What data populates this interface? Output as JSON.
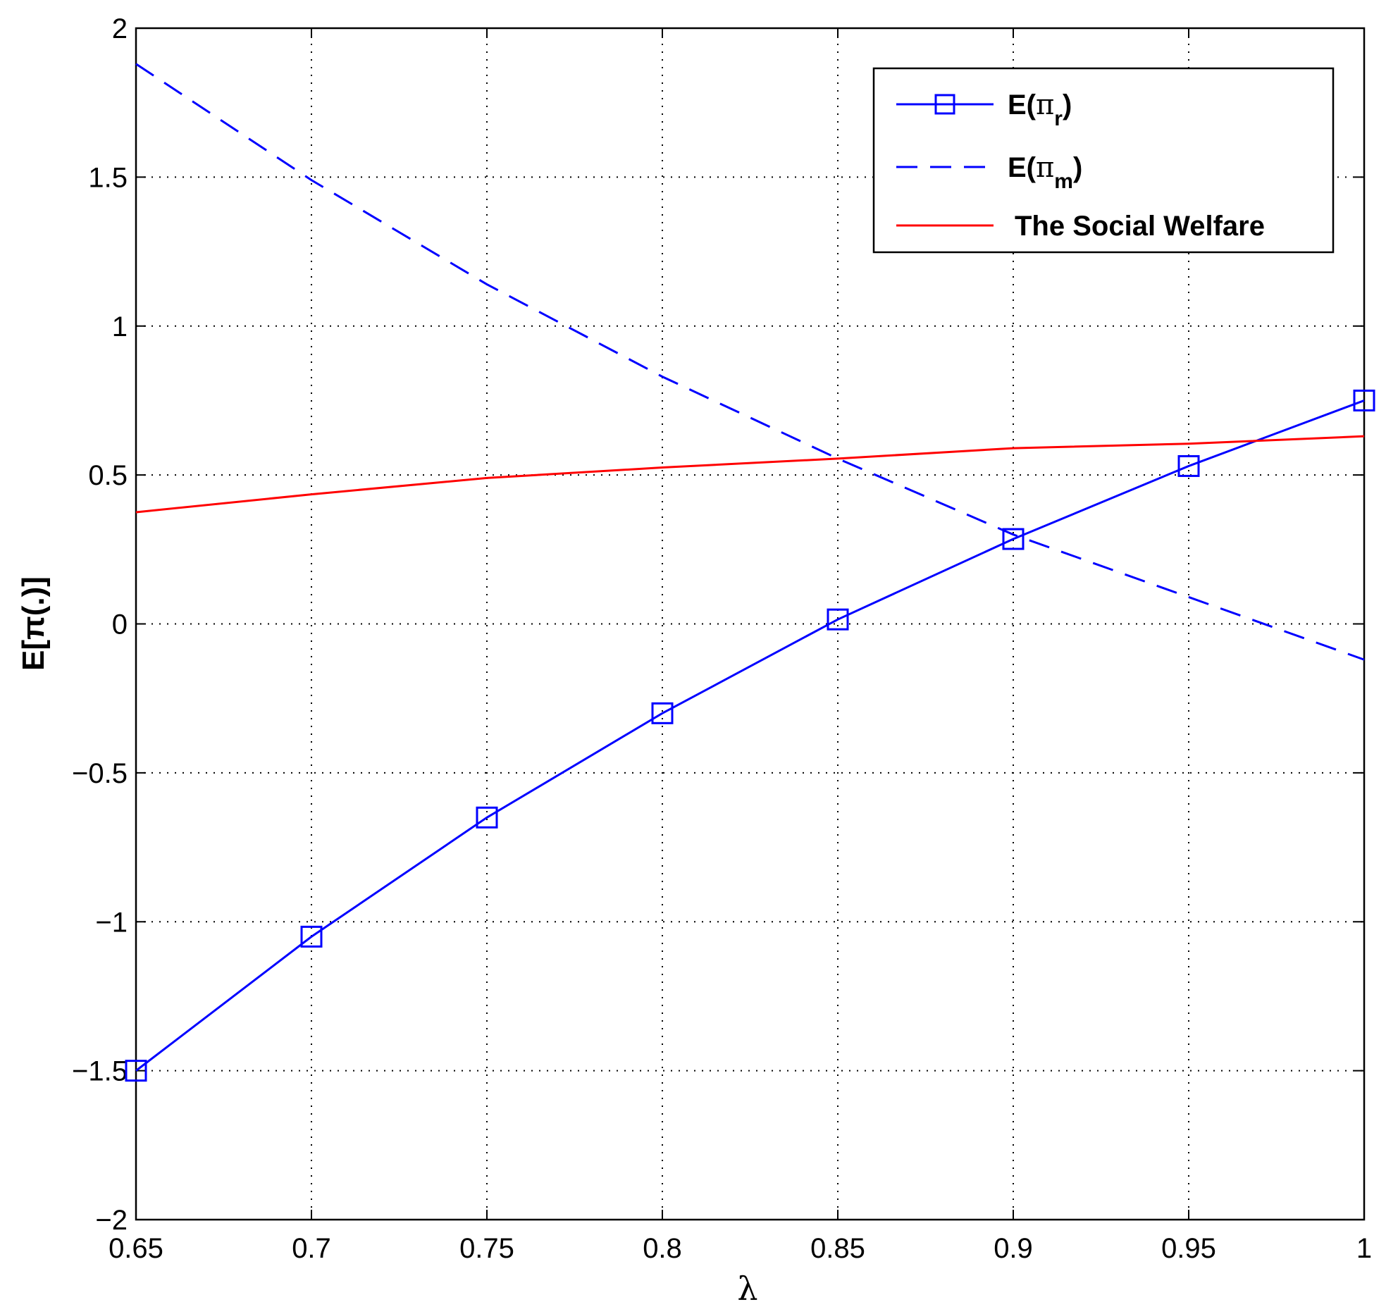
{
  "chart_data": {
    "type": "line",
    "xlabel": "λ",
    "ylabel": "E[π(.)]",
    "xlim": [
      0.65,
      1
    ],
    "ylim": [
      -2,
      2
    ],
    "x_ticks": [
      "0.65",
      "0.7",
      "0.75",
      "0.8",
      "0.85",
      "0.9",
      "0.95",
      "1"
    ],
    "y_ticks": [
      "−2",
      "−1.5",
      "−1",
      "−0.5",
      "0",
      "0.5",
      "1",
      "1.5",
      "2"
    ],
    "grid": true,
    "legend_position": "top-right",
    "series": [
      {
        "name": "E(π_r)",
        "label_main": "E(π",
        "label_sub": "r",
        "label_end": ")",
        "color": "#0000ff",
        "line_style": "solid",
        "marker": "square",
        "x": [
          0.65,
          0.7,
          0.75,
          0.8,
          0.85,
          0.9,
          0.95,
          1.0
        ],
        "y": [
          -1.5,
          -1.05,
          -0.65,
          -0.3,
          0.015,
          0.285,
          0.53,
          0.75
        ]
      },
      {
        "name": "E(π_m)",
        "label_main": "E(π",
        "label_sub": "m",
        "label_end": ")",
        "color": "#0000ff",
        "line_style": "dashed",
        "marker": "none",
        "x": [
          0.65,
          0.7,
          0.75,
          0.8,
          0.85,
          0.9,
          0.95,
          1.0
        ],
        "y": [
          1.88,
          1.49,
          1.14,
          0.83,
          0.555,
          0.3,
          0.09,
          -0.12
        ]
      },
      {
        "name": "The Social Welfare",
        "label_main": "The Social Welfare",
        "label_sub": "",
        "label_end": "",
        "color": "#ff0000",
        "line_style": "solid",
        "marker": "none",
        "x": [
          0.65,
          0.7,
          0.75,
          0.8,
          0.85,
          0.9,
          0.95,
          1.0
        ],
        "y": [
          0.375,
          0.435,
          0.49,
          0.525,
          0.555,
          0.59,
          0.605,
          0.63
        ]
      }
    ]
  }
}
